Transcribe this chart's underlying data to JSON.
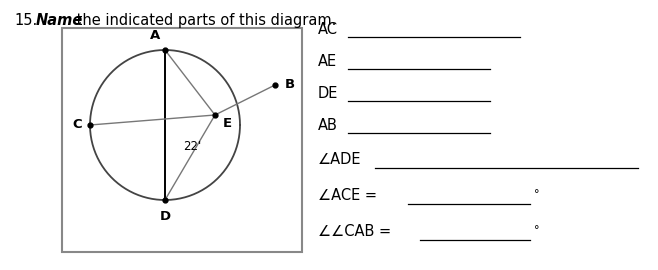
{
  "title_number": "15.",
  "title_bold": "Name",
  "title_rest": " the indicated parts of this diagram.",
  "bg_color": "#ffffff",
  "box_facecolor": "#ffffff",
  "box_edgecolor": "#888888",
  "circle_color": "#444444",
  "angle_symbol": "∠",
  "labels_right": [
    "AC",
    "AE",
    "DE",
    "AB",
    "∠ADE",
    "∠ACE =",
    "∠∠CAB ="
  ],
  "font_size_title": 10.5,
  "font_size_labels": 10.5,
  "font_size_points": 9.5,
  "font_size_angle": 8.5
}
